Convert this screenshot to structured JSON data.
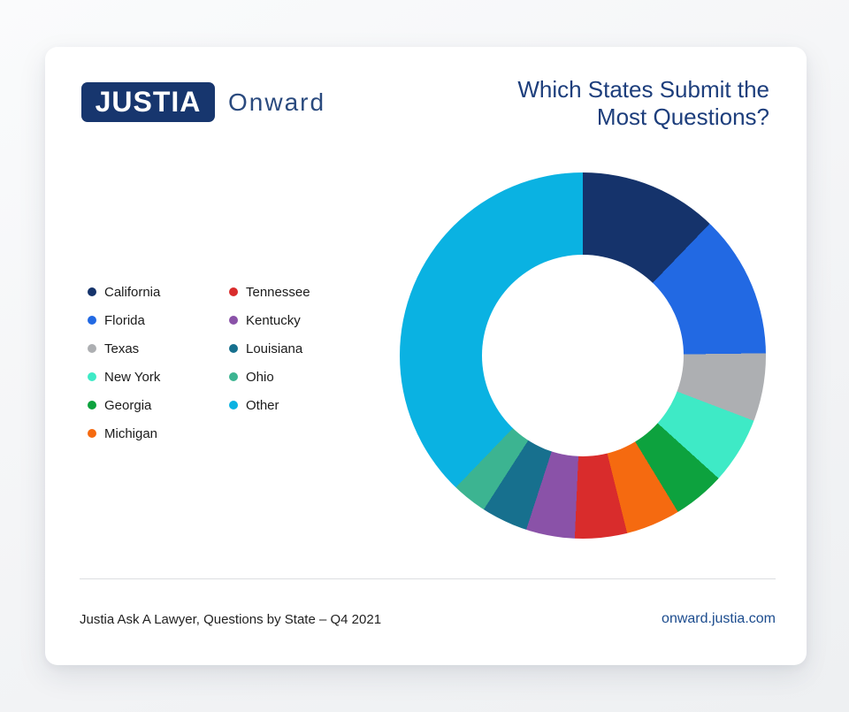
{
  "brand": {
    "logo_text": "JUSTIA",
    "wordmark": "Onward"
  },
  "title": {
    "line1": "Which States Submit the",
    "line2": "Most Questions?",
    "full": "Which States Submit the Most Questions?"
  },
  "chart_data": {
    "type": "pie",
    "subtype": "donut",
    "title": "Which States Submit the Most Questions?",
    "start_angle_deg": 0,
    "direction": "clockwise",
    "inner_radius_ratio": 0.55,
    "legend_position": "left",
    "legend_columns": [
      6,
      5
    ],
    "data_labels_shown": false,
    "series": [
      {
        "label": "California",
        "value_pct": 12.2,
        "color": "#15336b"
      },
      {
        "label": "Florida",
        "value_pct": 12.6,
        "color": "#2269e3"
      },
      {
        "label": "Texas",
        "value_pct": 6.0,
        "color": "#adafb2"
      },
      {
        "label": "New York",
        "value_pct": 5.9,
        "color": "#3eeac6"
      },
      {
        "label": "Georgia",
        "value_pct": 4.6,
        "color": "#0da23e"
      },
      {
        "label": "Michigan",
        "value_pct": 4.8,
        "color": "#f56a10"
      },
      {
        "label": "Tennessee",
        "value_pct": 4.6,
        "color": "#d92c2c"
      },
      {
        "label": "Kentucky",
        "value_pct": 4.3,
        "color": "#8a52a8"
      },
      {
        "label": "Louisiana",
        "value_pct": 4.1,
        "color": "#17708e"
      },
      {
        "label": "Ohio",
        "value_pct": 3.1,
        "color": "#3cb491"
      },
      {
        "label": "Other",
        "value_pct": 37.8,
        "color": "#0ab2e2"
      }
    ]
  },
  "footer": {
    "caption": "Justia Ask A Lawyer, Questions by State – Q4 2021",
    "link": "onward.justia.com"
  },
  "colors": {
    "logo_navy": "#17366e",
    "title_blue": "#1d3e7c",
    "wordmark_blue": "#2a4a7e",
    "link_blue": "#1c4c8e",
    "card_bg": "#ffffff",
    "page_bg": "#f3f4f6",
    "divider": "#dcdee1"
  }
}
